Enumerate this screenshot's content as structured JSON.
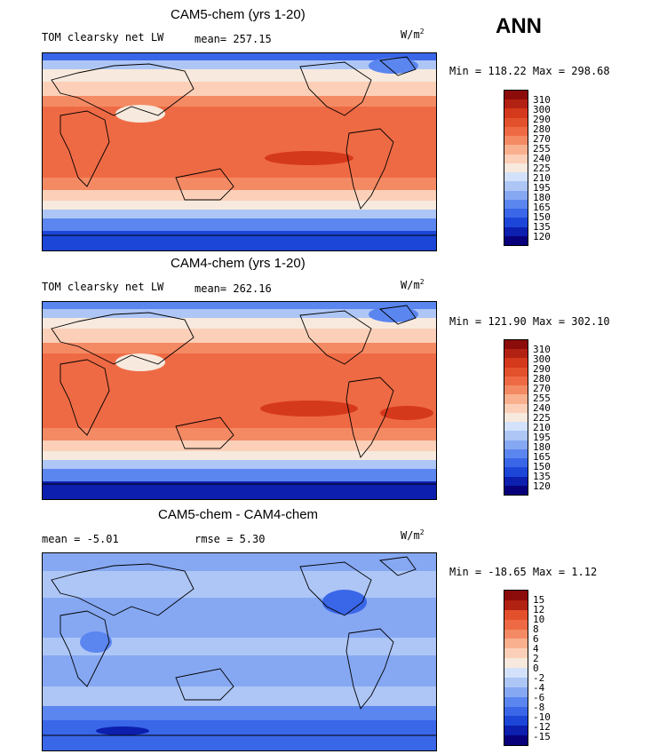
{
  "season": "ANN",
  "palette_scale": [
    "#08007a",
    "#0c1fae",
    "#1c46d8",
    "#3a66e8",
    "#5b86f0",
    "#86a8f3",
    "#adc6f6",
    "#d3e2fa",
    "#f7e9dd",
    "#fcd0b8",
    "#f9b08e",
    "#f48a64",
    "#ee6a44",
    "#e3512c",
    "#d5391b",
    "#b22212",
    "#8c0b0b"
  ],
  "palette_diff": [
    "#08007a",
    "#0c1fae",
    "#1c46d8",
    "#3a66e8",
    "#5b86f0",
    "#86a8f3",
    "#adc6f6",
    "#d3e2fa",
    "#f7e9dd",
    "#fcd0b8",
    "#f9b08e",
    "#f48a64",
    "#ee6a44",
    "#e3512c",
    "#b22212",
    "#8c0b0b"
  ],
  "panels": [
    {
      "title": "CAM5-chem (yrs 1-20)",
      "variable": "TOM clearsky net LW",
      "stat": "mean= 257.15",
      "units": "W/m",
      "units_exp": "2",
      "minmax": "Min = 118.22 Max = 298.68",
      "levels": [
        "310",
        "300",
        "290",
        "280",
        "270",
        "255",
        "240",
        "225",
        "210",
        "195",
        "180",
        "165",
        "150",
        "135",
        "120"
      ]
    },
    {
      "title": "CAM4-chem (yrs 1-20)",
      "variable": "TOM clearsky net LW",
      "stat": "mean= 262.16",
      "units": "W/m",
      "units_exp": "2",
      "minmax": "Min = 121.90 Max = 302.10",
      "levels": [
        "310",
        "300",
        "290",
        "280",
        "270",
        "255",
        "240",
        "225",
        "210",
        "195",
        "180",
        "165",
        "150",
        "135",
        "120"
      ]
    },
    {
      "title": "CAM5-chem - CAM4-chem",
      "mean_text": "mean =  -5.01",
      "rmse_text": "rmse =   5.30",
      "units": "W/m",
      "units_exp": "2",
      "minmax": "Min = -18.65 Max =   1.12",
      "levels": [
        "15",
        "12",
        "10",
        "8",
        "6",
        "4",
        "2",
        "0",
        "-2",
        "-4",
        "-6",
        "-8",
        "-10",
        "-12",
        "-15"
      ]
    }
  ],
  "chart_data": [
    {
      "type": "heatmap",
      "title": "CAM5-chem (yrs 1-20)",
      "variable": "TOM clearsky net LW",
      "units": "W/m^2",
      "mean": 257.15,
      "min": 118.22,
      "max": 298.68,
      "contour_levels": [
        120,
        135,
        150,
        165,
        180,
        195,
        210,
        225,
        240,
        255,
        270,
        280,
        290,
        300,
        310
      ],
      "x": "longitude 0 to 360",
      "y": "latitude -90 to 90"
    },
    {
      "type": "heatmap",
      "title": "CAM4-chem (yrs 1-20)",
      "variable": "TOM clearsky net LW",
      "units": "W/m^2",
      "mean": 262.16,
      "min": 121.9,
      "max": 302.1,
      "contour_levels": [
        120,
        135,
        150,
        165,
        180,
        195,
        210,
        225,
        240,
        255,
        270,
        280,
        290,
        300,
        310
      ],
      "x": "longitude 0 to 360",
      "y": "latitude -90 to 90"
    },
    {
      "type": "heatmap",
      "title": "CAM5-chem - CAM4-chem",
      "units": "W/m^2",
      "mean": -5.01,
      "rmse": 5.3,
      "min": -18.65,
      "max": 1.12,
      "contour_levels": [
        -15,
        -12,
        -10,
        -8,
        -6,
        -4,
        -2,
        0,
        2,
        4,
        6,
        8,
        10,
        12,
        15
      ],
      "x": "longitude 0 to 360",
      "y": "latitude -90 to 90"
    }
  ]
}
